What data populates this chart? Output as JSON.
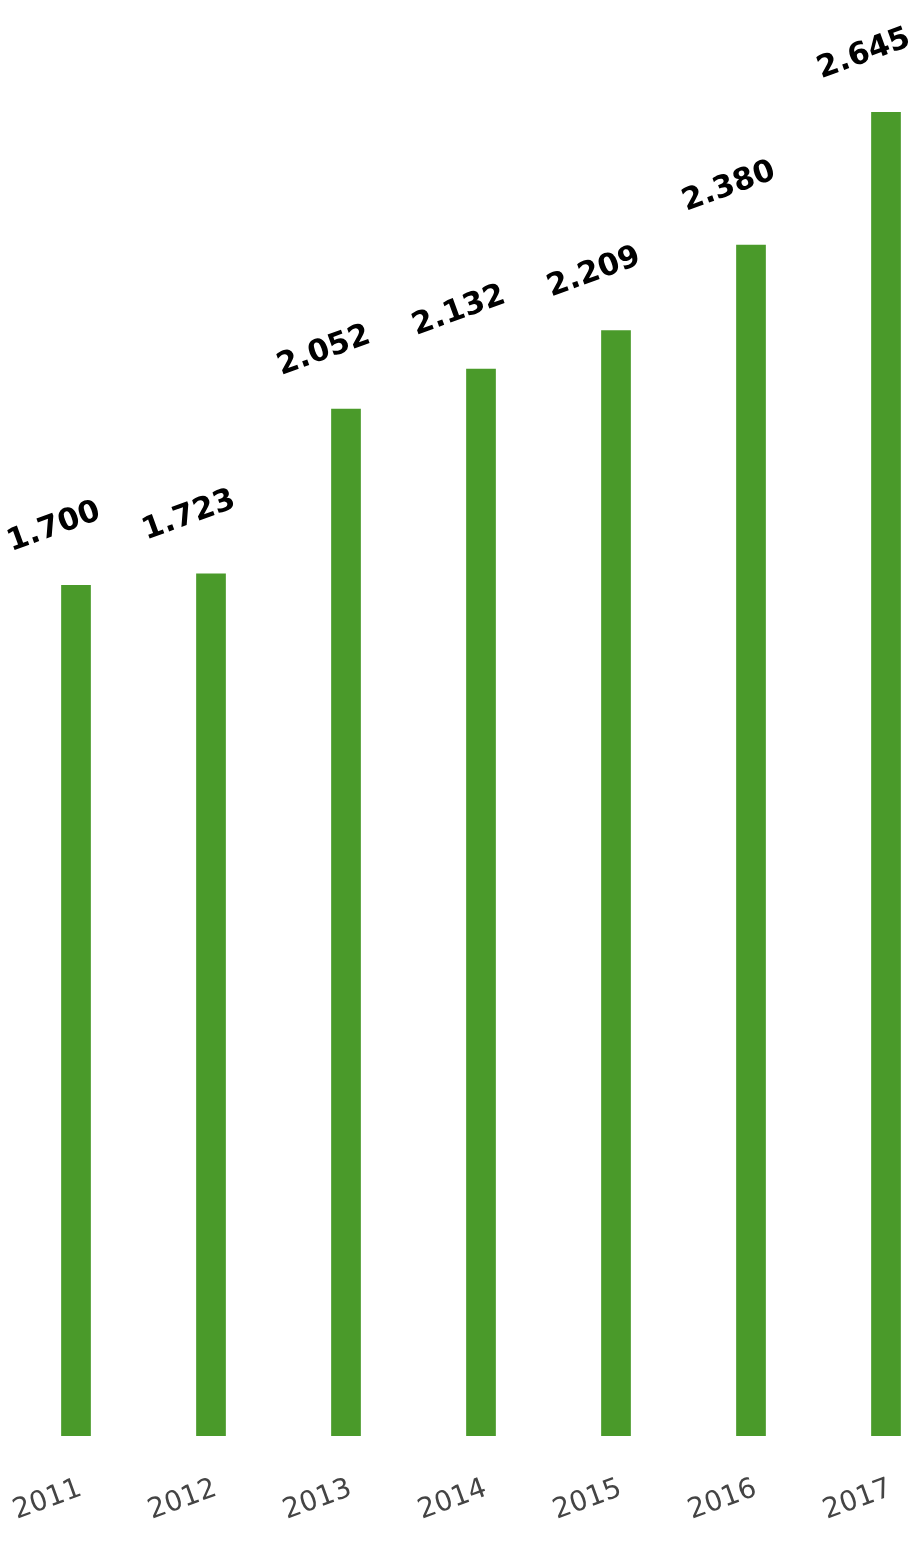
{
  "chart_data": {
    "type": "bar",
    "categories": [
      "2011",
      "2012",
      "2013",
      "2014",
      "2015",
      "2016",
      "2017"
    ],
    "values": [
      1.7,
      1.723,
      2.052,
      2.132,
      2.209,
      2.38,
      2.645
    ],
    "value_labels": [
      "1.700",
      "1.723",
      "2.052",
      "2.132",
      "2.209",
      "2.380",
      "2.645"
    ],
    "color": "#4a9a2a",
    "grid": false,
    "legend": false
  }
}
